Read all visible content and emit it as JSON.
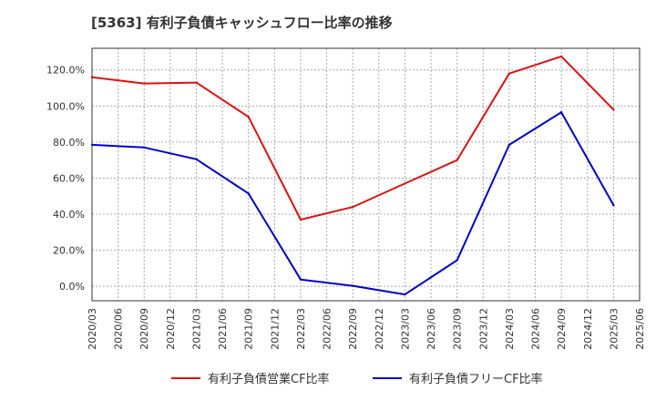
{
  "chart_data": {
    "type": "line",
    "title": "[5363]  有利子負債キャッシュフロー比率の推移",
    "xlabel": "",
    "ylabel": "",
    "categories": [
      "2020/03",
      "2020/06",
      "2020/09",
      "2020/12",
      "2021/03",
      "2021/06",
      "2021/09",
      "2021/12",
      "2022/03",
      "2022/06",
      "2022/09",
      "2022/12",
      "2023/03",
      "2023/06",
      "2023/09",
      "2023/12",
      "2024/03",
      "2024/06",
      "2024/09",
      "2024/12",
      "2025/03",
      "2025/06"
    ],
    "ylim": [
      -8,
      132
    ],
    "yticks": [
      0,
      20,
      40,
      60,
      80,
      100,
      120
    ],
    "ytick_labels": [
      "0.0%",
      "20.0%",
      "40.0%",
      "60.0%",
      "80.0%",
      "100.0%",
      "120.0%"
    ],
    "grid": true,
    "legend_position": "bottom",
    "series": [
      {
        "name": "有利子負債営業CF比率",
        "color": "#dd1111",
        "values": [
          116.0,
          null,
          112.5,
          null,
          113.0,
          null,
          94.0,
          null,
          37.0,
          null,
          44.0,
          null,
          57.0,
          null,
          70.0,
          null,
          118.0,
          null,
          127.5,
          null,
          98.0,
          null
        ]
      },
      {
        "name": "有利子負債フリーCF比率",
        "color": "#0000cc",
        "values": [
          78.5,
          null,
          77.0,
          null,
          70.5,
          null,
          51.5,
          null,
          3.8,
          null,
          0.3,
          null,
          -4.5,
          null,
          14.5,
          null,
          78.5,
          null,
          96.5,
          null,
          45.0,
          null
        ]
      }
    ]
  }
}
